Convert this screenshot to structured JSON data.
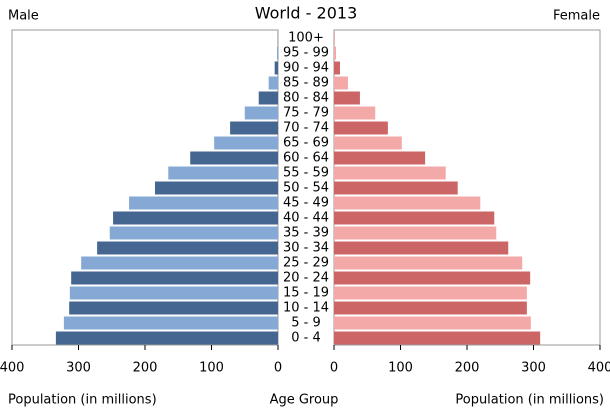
{
  "chart_data": {
    "type": "pyramid",
    "title": "World - 2013",
    "left_label": "Male",
    "right_label": "Female",
    "x_label": "Population (in millions)",
    "center_label": "Age Group",
    "categories": [
      "0 - 4",
      "5 - 9",
      "10 - 14",
      "15 - 19",
      "20 - 24",
      "25 - 29",
      "30 - 34",
      "35 - 39",
      "40 - 44",
      "45 - 49",
      "50 - 54",
      "55 - 59",
      "60 - 64",
      "65 - 69",
      "70 - 74",
      "75 - 79",
      "80 - 84",
      "85 - 89",
      "90 - 94",
      "95 - 99",
      "100+"
    ],
    "series": [
      {
        "name": "Male",
        "colors": [
          "#446690",
          "#86a8d4"
        ],
        "values": [
          334,
          322,
          314,
          313,
          311,
          296,
          272,
          253,
          248,
          224,
          185,
          165,
          132,
          96,
          72,
          50,
          29,
          14,
          5,
          1.5,
          0.3
        ]
      },
      {
        "name": "Female",
        "colors": [
          "#cc6666",
          "#f4a9a9"
        ],
        "values": [
          310,
          296,
          290,
          290,
          295,
          283,
          262,
          244,
          241,
          220,
          186,
          168,
          137,
          102,
          81,
          62,
          39,
          21,
          9,
          3,
          0.7
        ]
      }
    ],
    "xlim": [
      0,
      400
    ],
    "xticks": [
      0,
      100,
      200,
      300,
      400
    ]
  }
}
